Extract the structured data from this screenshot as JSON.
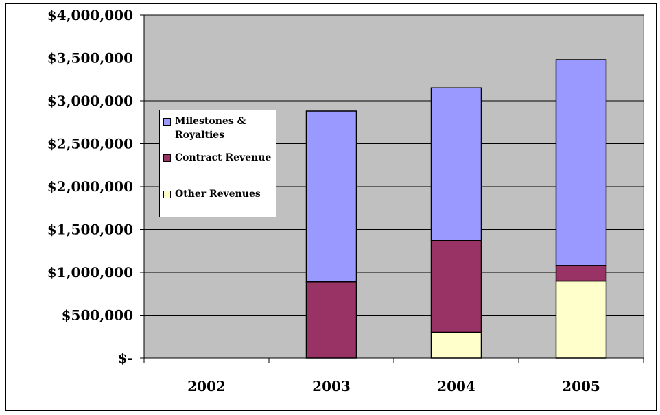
{
  "chart_data": {
    "type": "bar",
    "stacked": true,
    "title": "",
    "xlabel": "",
    "ylabel": "",
    "categories": [
      "2002",
      "2003",
      "2004",
      "2005"
    ],
    "series": [
      {
        "name": "Other Revenues",
        "color": "#FFFFCC",
        "values": [
          0,
          0,
          300000,
          900000
        ]
      },
      {
        "name": "Contract Revenue",
        "color": "#993366",
        "values": [
          0,
          890000,
          1070000,
          180000
        ]
      },
      {
        "name": "Milestones & Royalties",
        "color": "#9999FF",
        "values": [
          0,
          1990000,
          1780000,
          2400000
        ]
      }
    ],
    "ylim": [
      0,
      4000000
    ],
    "yticks": [
      0,
      500000,
      1000000,
      1500000,
      2000000,
      2500000,
      3000000,
      3500000,
      4000000
    ],
    "ytick_labels": [
      "$-",
      "$500,000",
      "$1,000,000",
      "$1,500,000",
      "$2,000,000",
      "$2,500,000",
      "$3,000,000",
      "$3,500,000",
      "$4,000,000"
    ],
    "grid": true,
    "plot_background": "#C0C0C0",
    "legend": {
      "position": "left-middle",
      "entries": [
        "Milestones & Royalties",
        "Contract Revenue",
        "Other Revenues"
      ],
      "swatch_colors": [
        "#9999FF",
        "#993366",
        "#FFFFCC"
      ]
    }
  }
}
